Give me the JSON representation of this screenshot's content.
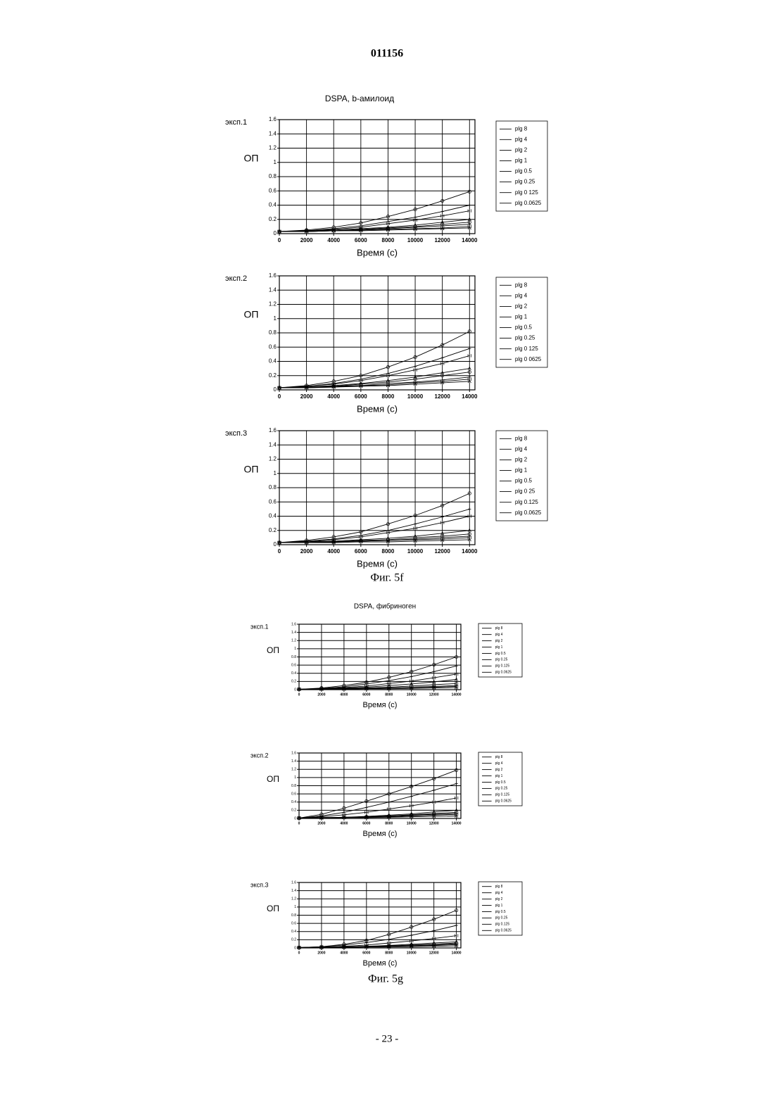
{
  "header": {
    "doc_number": "011156"
  },
  "figure_captions": [
    "Фиг. 5f",
    "Фиг. 5g"
  ],
  "footer": {
    "page": "- 23 -"
  },
  "chart_data": [
    {
      "type": "line",
      "title": "DSPA, b-амилоид",
      "panel_label": "эксп.1",
      "ylabel": "ОП",
      "xlabel": "Время (с)",
      "color": "#000000",
      "grid": true,
      "x": [
        0,
        2000,
        4000,
        6000,
        8000,
        10000,
        12000,
        14000
      ],
      "xlim": [
        0,
        14400
      ],
      "xticks": [
        0,
        2000,
        4000,
        6000,
        8000,
        10000,
        12000,
        14000
      ],
      "ylim": [
        0,
        1.6
      ],
      "yticks": [
        0,
        0.2,
        0.4,
        0.6,
        0.8,
        1,
        1.2,
        1.4,
        1.6
      ],
      "series": [
        {
          "name": "plg 8",
          "values": [
            0.03,
            0.05,
            0.09,
            0.15,
            0.24,
            0.34,
            0.46,
            0.59
          ]
        },
        {
          "name": "plg 4",
          "values": [
            0.03,
            0.04,
            0.07,
            0.11,
            0.17,
            0.23,
            0.31,
            0.4
          ]
        },
        {
          "name": "plg 2",
          "values": [
            0.03,
            0.04,
            0.06,
            0.09,
            0.14,
            0.19,
            0.25,
            0.32
          ]
        },
        {
          "name": "plg 1",
          "values": [
            0.03,
            0.04,
            0.05,
            0.07,
            0.09,
            0.12,
            0.16,
            0.2
          ]
        },
        {
          "name": "plg 0.5",
          "values": [
            0.03,
            0.04,
            0.04,
            0.06,
            0.08,
            0.1,
            0.13,
            0.16
          ]
        },
        {
          "name": "plg 0.25",
          "values": [
            0.03,
            0.03,
            0.04,
            0.05,
            0.07,
            0.09,
            0.11,
            0.13
          ]
        },
        {
          "name": "plg 0 125",
          "values": [
            0.03,
            0.03,
            0.04,
            0.05,
            0.06,
            0.07,
            0.08,
            0.1
          ]
        },
        {
          "name": "plg 0.0625",
          "values": [
            0.03,
            0.03,
            0.04,
            0.04,
            0.05,
            0.06,
            0.07,
            0.08
          ]
        }
      ]
    },
    {
      "type": "line",
      "panel_label": "эксп.2",
      "ylabel": "ОП",
      "xlabel": "Время (с)",
      "color": "#000000",
      "grid": true,
      "x": [
        0,
        2000,
        4000,
        6000,
        8000,
        10000,
        12000,
        14000
      ],
      "xlim": [
        0,
        14400
      ],
      "xticks": [
        0,
        2000,
        4000,
        6000,
        8000,
        10000,
        12000,
        14000
      ],
      "ylim": [
        0,
        1.6
      ],
      "yticks": [
        0,
        0.2,
        0.4,
        0.6,
        0.8,
        1,
        1.2,
        1.4,
        1.6
      ],
      "series": [
        {
          "name": "plg 8",
          "values": [
            0.03,
            0.06,
            0.12,
            0.2,
            0.32,
            0.46,
            0.63,
            0.82
          ]
        },
        {
          "name": "plg 4",
          "values": [
            0.03,
            0.05,
            0.09,
            0.15,
            0.23,
            0.33,
            0.45,
            0.58
          ]
        },
        {
          "name": "plg 2",
          "values": [
            0.03,
            0.05,
            0.08,
            0.13,
            0.2,
            0.28,
            0.37,
            0.48
          ]
        },
        {
          "name": "plg 1",
          "values": [
            0.03,
            0.04,
            0.06,
            0.09,
            0.13,
            0.18,
            0.24,
            0.3
          ]
        },
        {
          "name": "plg 0.5",
          "values": [
            0.03,
            0.04,
            0.05,
            0.08,
            0.11,
            0.15,
            0.2,
            0.25
          ]
        },
        {
          "name": "plg 0.25",
          "values": [
            0.03,
            0.04,
            0.05,
            0.06,
            0.09,
            0.11,
            0.14,
            0.18
          ]
        },
        {
          "name": "plg 0 125",
          "values": [
            0.03,
            0.03,
            0.04,
            0.06,
            0.07,
            0.1,
            0.12,
            0.15
          ]
        },
        {
          "name": "plg 0 0625",
          "values": [
            0.03,
            0.03,
            0.04,
            0.05,
            0.06,
            0.08,
            0.1,
            0.12
          ]
        }
      ]
    },
    {
      "type": "line",
      "panel_label": "эксп.3",
      "ylabel": "ОП",
      "xlabel": "Время (с)",
      "color": "#000000",
      "grid": true,
      "x": [
        0,
        2000,
        4000,
        6000,
        8000,
        10000,
        12000,
        14000
      ],
      "xlim": [
        0,
        14400
      ],
      "xticks": [
        0,
        2000,
        4000,
        6000,
        8000,
        10000,
        12000,
        14000
      ],
      "ylim": [
        0,
        1.6
      ],
      "yticks": [
        0,
        0.2,
        0.4,
        0.6,
        0.8,
        1,
        1.2,
        1.4,
        1.6
      ],
      "series": [
        {
          "name": "plg 8",
          "values": [
            0.03,
            0.06,
            0.11,
            0.18,
            0.29,
            0.41,
            0.55,
            0.72
          ]
        },
        {
          "name": "plg 4",
          "values": [
            0.03,
            0.05,
            0.08,
            0.13,
            0.2,
            0.29,
            0.39,
            0.5
          ]
        },
        {
          "name": "plg 2",
          "values": [
            0.03,
            0.04,
            0.07,
            0.11,
            0.17,
            0.23,
            0.31,
            0.4
          ]
        },
        {
          "name": "plg 1",
          "values": [
            0.03,
            0.04,
            0.05,
            0.07,
            0.09,
            0.12,
            0.16,
            0.2
          ]
        },
        {
          "name": "plg 0.5",
          "values": [
            0.03,
            0.03,
            0.04,
            0.06,
            0.07,
            0.1,
            0.12,
            0.15
          ]
        },
        {
          "name": "plg 0 25",
          "values": [
            0.03,
            0.03,
            0.04,
            0.05,
            0.06,
            0.08,
            0.1,
            0.12
          ]
        },
        {
          "name": "plg 0.125",
          "values": [
            0.03,
            0.03,
            0.04,
            0.05,
            0.06,
            0.07,
            0.08,
            0.1
          ]
        },
        {
          "name": "plg 0.0625",
          "values": [
            0.03,
            0.03,
            0.03,
            0.04,
            0.04,
            0.05,
            0.06,
            0.07
          ]
        }
      ]
    },
    {
      "type": "line",
      "title": "DSPA, фибриноген",
      "panel_label": "эксп.1",
      "ylabel": "ОП",
      "xlabel": "Время (с)",
      "color": "#000000",
      "grid": true,
      "x": [
        0,
        2000,
        4000,
        6000,
        8000,
        10000,
        12000,
        14000
      ],
      "xlim": [
        0,
        14400
      ],
      "xticks": [
        0,
        2000,
        4000,
        6000,
        8000,
        10000,
        12000,
        14000
      ],
      "ylim": [
        0,
        1.6
      ],
      "yticks": [
        0,
        0.2,
        0.4,
        0.6,
        0.8,
        1,
        1.2,
        1.4,
        1.6
      ],
      "series": [
        {
          "name": "plg 8",
          "values": [
            0.01,
            0.04,
            0.1,
            0.18,
            0.3,
            0.44,
            0.61,
            0.8
          ]
        },
        {
          "name": "plg 4",
          "values": [
            0.01,
            0.03,
            0.07,
            0.14,
            0.22,
            0.32,
            0.44,
            0.58
          ]
        },
        {
          "name": "plg 2",
          "values": [
            0.01,
            0.02,
            0.05,
            0.09,
            0.15,
            0.21,
            0.29,
            0.38
          ]
        },
        {
          "name": "plg 1",
          "values": [
            0.01,
            0.02,
            0.04,
            0.06,
            0.1,
            0.14,
            0.19,
            0.25
          ]
        },
        {
          "name": "plg 0.5",
          "values": [
            0.01,
            0.02,
            0.03,
            0.04,
            0.06,
            0.09,
            0.12,
            0.15
          ]
        },
        {
          "name": "plg 0.25",
          "values": [
            0.01,
            0.01,
            0.02,
            0.03,
            0.04,
            0.06,
            0.08,
            0.1
          ]
        },
        {
          "name": "plg 0.125",
          "values": [
            0.01,
            0.01,
            0.02,
            0.03,
            0.04,
            0.05,
            0.06,
            0.08
          ]
        },
        {
          "name": "plg 0.0625",
          "values": [
            0.01,
            0.01,
            0.01,
            0.02,
            0.02,
            0.03,
            0.04,
            0.05
          ]
        }
      ]
    },
    {
      "type": "line",
      "panel_label": "эксп.2",
      "ylabel": "ОП",
      "xlabel": "Время (с)",
      "color": "#000000",
      "grid": true,
      "x": [
        0,
        2000,
        4000,
        6000,
        8000,
        10000,
        12000,
        14000
      ],
      "xlim": [
        0,
        14400
      ],
      "xticks": [
        0,
        2000,
        4000,
        6000,
        8000,
        10000,
        12000,
        14000
      ],
      "ylim": [
        0,
        1.6
      ],
      "yticks": [
        0,
        0.2,
        0.4,
        0.6,
        0.8,
        1,
        1.2,
        1.4,
        1.6
      ],
      "series": [
        {
          "name": "plg 8",
          "values": [
            0.01,
            0.1,
            0.25,
            0.42,
            0.6,
            0.78,
            0.97,
            1.18
          ]
        },
        {
          "name": "plg 4",
          "values": [
            0.01,
            0.06,
            0.15,
            0.27,
            0.4,
            0.54,
            0.69,
            0.85
          ]
        },
        {
          "name": "plg 2",
          "values": [
            0.01,
            0.04,
            0.09,
            0.15,
            0.23,
            0.31,
            0.4,
            0.5
          ]
        },
        {
          "name": "plg 1",
          "values": [
            0.01,
            0.02,
            0.03,
            0.05,
            0.08,
            0.11,
            0.16,
            0.2
          ]
        },
        {
          "name": "plg 0.5",
          "values": [
            0.01,
            0.02,
            0.03,
            0.04,
            0.06,
            0.09,
            0.12,
            0.15
          ]
        },
        {
          "name": "plg 0.25",
          "values": [
            0.01,
            0.01,
            0.02,
            0.04,
            0.05,
            0.08,
            0.1,
            0.12
          ]
        },
        {
          "name": "plg 0.125",
          "values": [
            0.01,
            0.01,
            0.02,
            0.03,
            0.04,
            0.06,
            0.08,
            0.1
          ]
        },
        {
          "name": "plg 0.0625",
          "values": [
            0.01,
            0.01,
            0.02,
            0.02,
            0.03,
            0.04,
            0.05,
            0.06
          ]
        }
      ]
    },
    {
      "type": "line",
      "panel_label": "эксп.3",
      "ylabel": "ОП",
      "xlabel": "Время (с)",
      "color": "#000000",
      "grid": true,
      "x": [
        0,
        2000,
        4000,
        6000,
        8000,
        10000,
        12000,
        14000
      ],
      "xlim": [
        0,
        14400
      ],
      "xticks": [
        0,
        2000,
        4000,
        6000,
        8000,
        10000,
        12000,
        14000
      ],
      "ylim": [
        0,
        1.6
      ],
      "yticks": [
        0,
        0.2,
        0.4,
        0.6,
        0.8,
        1,
        1.2,
        1.4,
        1.6
      ],
      "series": [
        {
          "name": "plg 8",
          "values": [
            0.01,
            0.03,
            0.09,
            0.18,
            0.33,
            0.51,
            0.7,
            0.92
          ]
        },
        {
          "name": "plg 4",
          "values": [
            0.01,
            0.03,
            0.07,
            0.13,
            0.21,
            0.31,
            0.42,
            0.55
          ]
        },
        {
          "name": "plg 2",
          "values": [
            0.01,
            0.02,
            0.04,
            0.07,
            0.12,
            0.17,
            0.23,
            0.3
          ]
        },
        {
          "name": "plg 1",
          "values": [
            0.01,
            0.02,
            0.03,
            0.04,
            0.06,
            0.09,
            0.12,
            0.15
          ]
        },
        {
          "name": "plg 0.5",
          "values": [
            0.01,
            0.01,
            0.02,
            0.03,
            0.05,
            0.07,
            0.09,
            0.12
          ]
        },
        {
          "name": "plg 0.25",
          "values": [
            0.01,
            0.01,
            0.02,
            0.03,
            0.04,
            0.06,
            0.08,
            0.1
          ]
        },
        {
          "name": "plg 0.125",
          "values": [
            0.01,
            0.01,
            0.02,
            0.03,
            0.04,
            0.05,
            0.06,
            0.08
          ]
        },
        {
          "name": "plg 0.0625",
          "values": [
            0.01,
            0.01,
            0.01,
            0.02,
            0.02,
            0.03,
            0.04,
            0.05
          ]
        }
      ]
    }
  ]
}
